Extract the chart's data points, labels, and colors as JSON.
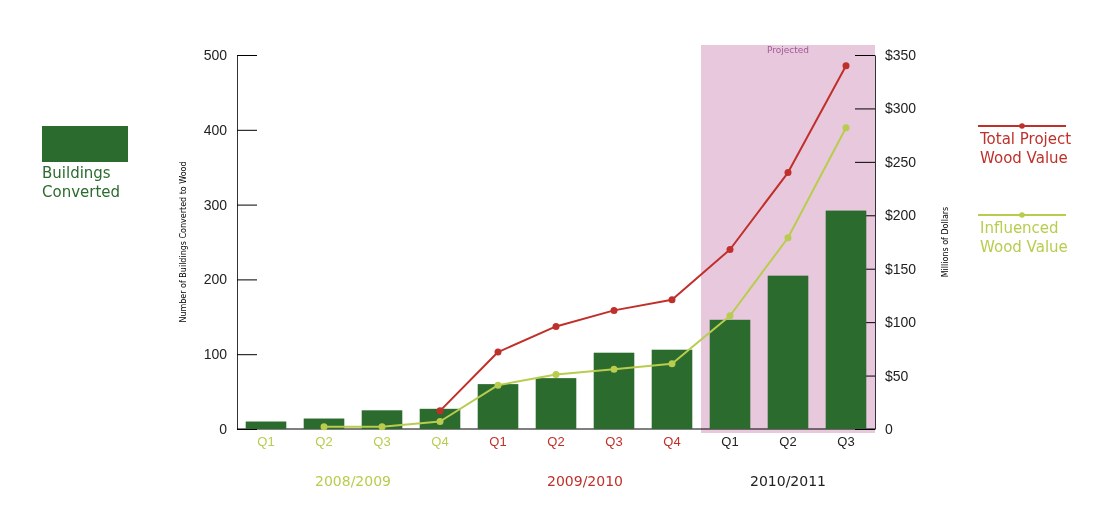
{
  "chart_data": {
    "type": "bar",
    "categories": [
      "Q1",
      "Q2",
      "Q3",
      "Q4",
      "Q1",
      "Q2",
      "Q3",
      "Q4",
      "Q1",
      "Q2",
      "Q3"
    ],
    "series": [
      {
        "name": "Buildings Converted",
        "color": "#2b6b2e",
        "values": [
          10,
          14,
          25,
          27,
          60,
          68,
          102,
          106,
          146,
          205,
          292
        ]
      },
      {
        "name": "Total Project Wood Value",
        "type": "line",
        "axis": "y2",
        "color": "#c0302a",
        "values": [
          null,
          null,
          null,
          17,
          72,
          96,
          111,
          121,
          168,
          240,
          340
        ]
      },
      {
        "name": "Influenced Wood Value",
        "type": "line",
        "axis": "y2",
        "color": "#b8cc4e",
        "values": [
          null,
          2,
          2,
          7,
          41,
          51,
          56,
          61,
          106,
          179,
          282
        ]
      }
    ],
    "ylabel": "Number of Buildings Converted to Wood",
    "y2label": "Millions of Dollars",
    "ylim": [
      0,
      500
    ],
    "yticks": [
      0,
      100,
      200,
      300,
      400,
      500
    ],
    "y2lim": [
      0,
      350
    ],
    "y2ticks": [
      0,
      {
        "value": 50,
        "label": "$50"
      },
      {
        "value": 100,
        "label": "$100"
      },
      {
        "value": 150,
        "label": "$150"
      },
      {
        "value": 200,
        "label": "$200"
      },
      {
        "value": 250,
        "label": "$250"
      },
      {
        "value": 300,
        "label": "$300"
      },
      {
        "value": 350,
        "label": "$350"
      }
    ],
    "annotations": [
      "2008/2009",
      "2009/2010",
      "2010/2011",
      "Projected"
    ],
    "marker": "circle",
    "line_style": "solid",
    "legend": "right",
    "grid": false
  }
}
